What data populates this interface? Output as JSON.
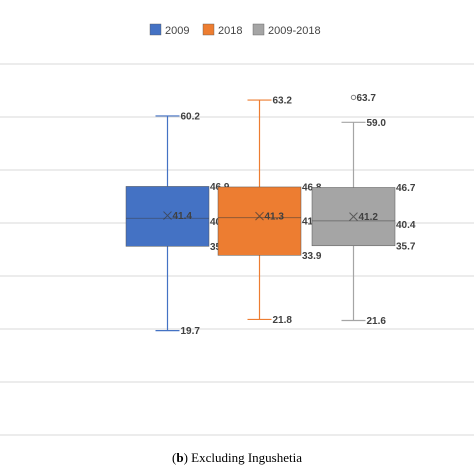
{
  "chart_data": {
    "type": "box",
    "title": "",
    "xlabel": "",
    "ylabel": "",
    "ylim": [
      0,
      75
    ],
    "grid": true,
    "legend_position": "top",
    "colors": {
      "2009": "#4472C4",
      "2018": "#ED7D31",
      "2009-2018": "#A5A5A5",
      "grid": "#d9d9d9",
      "outlier": "#7f7f7f"
    },
    "series": [
      {
        "name": "2009",
        "min": 19.7,
        "q1": 35.6,
        "median": 40.9,
        "q3": 46.9,
        "max": 60.2,
        "mean": 41.4,
        "outliers": []
      },
      {
        "name": "2018",
        "min": 21.8,
        "q1": 33.9,
        "median": 41.0,
        "q3": 46.8,
        "max": 63.2,
        "mean": 41.3,
        "outliers": []
      },
      {
        "name": "2009-2018",
        "min": 21.6,
        "q1": 35.7,
        "median": 40.4,
        "q3": 46.7,
        "max": 59.0,
        "mean": 41.2,
        "outliers": [
          63.7
        ]
      }
    ]
  },
  "caption": {
    "letter": "b",
    "rest": ") Excluding Ingushetia",
    "open": "("
  }
}
